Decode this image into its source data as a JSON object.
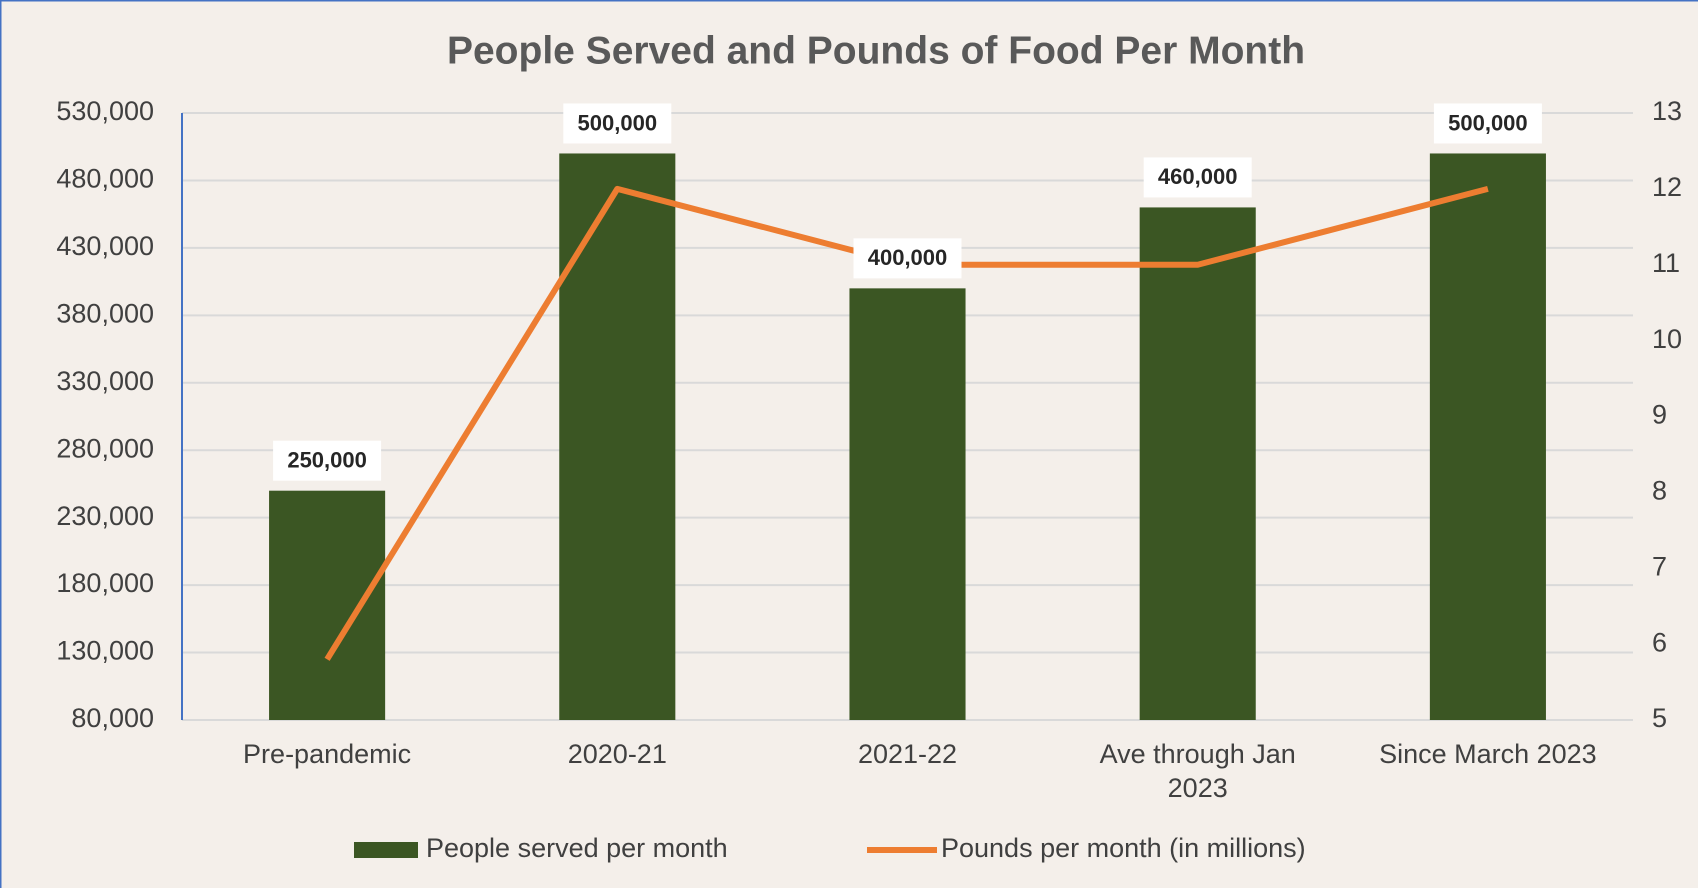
{
  "chart_data": {
    "type": "bar_line",
    "title": "People Served and Pounds of Food Per Month",
    "categories": [
      "Pre-pandemic",
      "2020-21",
      "2021-22",
      "Ave through Jan 2023",
      "Since March 2023"
    ],
    "series": [
      {
        "name": "People served per month",
        "type": "bar",
        "color": "#3b5623",
        "axis": "y",
        "values": [
          250000,
          500000,
          400000,
          460000,
          500000
        ],
        "value_labels": [
          "250,000",
          "500,000",
          "400,000",
          "460,000",
          "500,000"
        ]
      },
      {
        "name": "Pounds per month (in millions)",
        "type": "line",
        "color": "#ed7d31",
        "axis": "y2",
        "values": [
          5.8,
          12,
          11,
          11,
          12
        ]
      }
    ],
    "ylim": [
      80000,
      530000
    ],
    "yticks": [
      {
        "value": 80000,
        "label": "80,000"
      },
      {
        "value": 130000,
        "label": "130,000"
      },
      {
        "value": 180000,
        "label": "180,000"
      },
      {
        "value": 230000,
        "label": "230,000"
      },
      {
        "value": 280000,
        "label": "280,000"
      },
      {
        "value": 330000,
        "label": "330,000"
      },
      {
        "value": 380000,
        "label": "380,000"
      },
      {
        "value": 430000,
        "label": "430,000"
      },
      {
        "value": 480000,
        "label": "480,000"
      },
      {
        "value": 530000,
        "label": "530,000"
      }
    ],
    "y2lim": [
      5,
      13
    ],
    "y2ticks": [
      5,
      6,
      7,
      8,
      9,
      10,
      11,
      12,
      13
    ],
    "grid": true,
    "legend": "bottom"
  }
}
